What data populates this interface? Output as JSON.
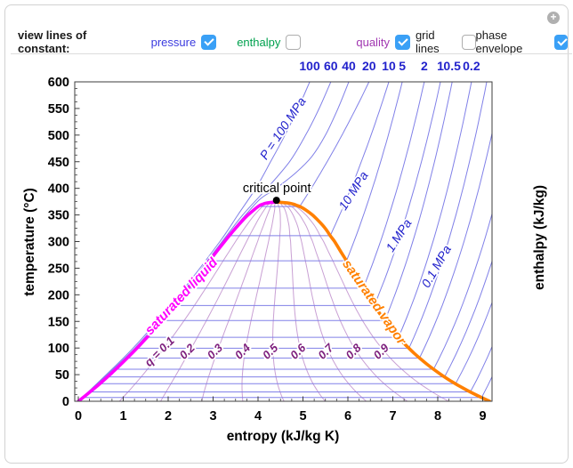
{
  "controls": {
    "heading": "view lines of constant:",
    "plus_icon": "+",
    "items": [
      {
        "label": "pressure",
        "color": "#3b3bdf",
        "checked": true
      },
      {
        "label": "enthalpy",
        "color": "#00a14e",
        "checked": false
      },
      {
        "label": "quality",
        "color": "#a137b1",
        "checked": true
      },
      {
        "label": "grid lines",
        "color": "#1a1a1a",
        "checked": false
      },
      {
        "label": "phase envelope",
        "color": "#1a1a1a",
        "checked": true
      }
    ]
  },
  "chart_data": {
    "type": "line",
    "xlabel": "entropy (kJ/kg K)",
    "ylabel": "temperature (°C)",
    "right_axis_label": "enthalpy (kJ/kg)",
    "xlim": [
      0,
      9.2
    ],
    "ylim": [
      0,
      600
    ],
    "x_ticks": [
      0,
      1,
      2,
      3,
      4,
      5,
      6,
      7,
      8,
      9
    ],
    "y_ticks": [
      0,
      50,
      100,
      150,
      200,
      250,
      300,
      350,
      400,
      450,
      500,
      550,
      600
    ],
    "top_axis": {
      "labels": [
        {
          "text": "100",
          "s": 5.15
        },
        {
          "text": "60",
          "s": 5.62
        },
        {
          "text": "40",
          "s": 6.02
        },
        {
          "text": "20",
          "s": 6.47
        },
        {
          "text": "10",
          "s": 6.91
        },
        {
          "text": "5",
          "s": 7.21
        },
        {
          "text": "2",
          "s": 7.7
        },
        {
          "text": "1",
          "s": 8.06
        },
        {
          "text": "0.5",
          "s": 8.32
        },
        {
          "text": "0.2",
          "s": 8.75
        }
      ]
    },
    "saturation_liquid": [
      [
        0,
        0
      ],
      [
        10,
        0.151
      ],
      [
        20,
        0.297
      ],
      [
        30,
        0.437
      ],
      [
        40,
        0.572
      ],
      [
        50,
        0.704
      ],
      [
        60,
        0.831
      ],
      [
        70,
        0.955
      ],
      [
        80,
        1.075
      ],
      [
        90,
        1.193
      ],
      [
        100,
        1.307
      ],
      [
        110,
        1.419
      ],
      [
        120,
        1.528
      ],
      [
        130,
        1.635
      ],
      [
        140,
        1.739
      ],
      [
        150,
        1.842
      ],
      [
        170,
        2.042
      ],
      [
        190,
        2.236
      ],
      [
        200,
        2.331
      ],
      [
        220,
        2.518
      ],
      [
        240,
        2.702
      ],
      [
        260,
        2.885
      ],
      [
        280,
        3.068
      ],
      [
        300,
        3.255
      ],
      [
        310,
        3.351
      ],
      [
        320,
        3.449
      ],
      [
        330,
        3.552
      ],
      [
        340,
        3.66
      ],
      [
        350,
        3.778
      ],
      [
        360,
        3.915
      ],
      [
        365,
        3.99
      ],
      [
        368,
        4.04
      ],
      [
        370,
        4.1
      ],
      [
        372,
        4.17
      ],
      [
        373,
        4.24
      ],
      [
        374.15,
        4.41
      ]
    ],
    "saturation_vapor": [
      [
        0,
        9.155
      ],
      [
        10,
        8.9
      ],
      [
        20,
        8.666
      ],
      [
        30,
        8.452
      ],
      [
        40,
        8.256
      ],
      [
        50,
        8.075
      ],
      [
        60,
        7.909
      ],
      [
        70,
        7.754
      ],
      [
        80,
        7.611
      ],
      [
        90,
        7.478
      ],
      [
        100,
        7.354
      ],
      [
        110,
        7.238
      ],
      [
        120,
        7.129
      ],
      [
        130,
        7.026
      ],
      [
        140,
        6.929
      ],
      [
        150,
        6.837
      ],
      [
        170,
        6.665
      ],
      [
        190,
        6.507
      ],
      [
        200,
        6.43
      ],
      [
        220,
        6.285
      ],
      [
        240,
        6.142
      ],
      [
        260,
        5.998
      ],
      [
        280,
        5.85
      ],
      [
        300,
        5.704
      ],
      [
        310,
        5.615
      ],
      [
        320,
        5.536
      ],
      [
        330,
        5.446
      ],
      [
        340,
        5.335
      ],
      [
        350,
        5.211
      ],
      [
        360,
        5.052
      ],
      [
        365,
        4.95
      ],
      [
        368,
        4.86
      ],
      [
        370,
        4.8
      ],
      [
        372,
        4.7
      ],
      [
        373,
        4.6
      ],
      [
        374.15,
        4.41
      ]
    ],
    "critical_point": {
      "s": 4.41,
      "T": 374.15,
      "label": "critical point",
      "label_s": 4.42,
      "label_T": 401
    },
    "isobars_supercritical": [
      {
        "label": "100",
        "points": [
          [
            0,
            0
          ],
          [
            100,
            1.22
          ],
          [
            200,
            2.24
          ],
          [
            300,
            3.15
          ],
          [
            350,
            3.55
          ],
          [
            400,
            3.95
          ],
          [
            450,
            4.28
          ],
          [
            500,
            4.6
          ],
          [
            550,
            4.89
          ],
          [
            600,
            5.15
          ]
        ]
      },
      {
        "label": "60",
        "points": [
          [
            0,
            0
          ],
          [
            100,
            1.26
          ],
          [
            200,
            2.28
          ],
          [
            300,
            3.2
          ],
          [
            350,
            3.66
          ],
          [
            400,
            4.2
          ],
          [
            450,
            4.7
          ],
          [
            500,
            5.06
          ],
          [
            550,
            5.36
          ],
          [
            600,
            5.62
          ]
        ]
      },
      {
        "label": "40",
        "points": [
          [
            0,
            0
          ],
          [
            100,
            1.28
          ],
          [
            200,
            2.3
          ],
          [
            300,
            3.22
          ],
          [
            350,
            3.72
          ],
          [
            380,
            4.05
          ],
          [
            400,
            4.4
          ],
          [
            430,
            4.85
          ],
          [
            460,
            5.2
          ],
          [
            500,
            5.5
          ],
          [
            550,
            5.78
          ],
          [
            600,
            6.02
          ]
        ]
      }
    ],
    "isobars_subcritical": [
      {
        "label": "20",
        "Tsat": 365.8,
        "s_top": 6.47
      },
      {
        "label": "10",
        "Tsat": 311.0,
        "s_top": 6.91
      },
      {
        "label": "5",
        "Tsat": 263.9,
        "s_top": 7.21
      },
      {
        "label": "2",
        "Tsat": 212.4,
        "s_top": 7.7
      },
      {
        "label": "1",
        "Tsat": 179.9,
        "s_top": 8.06
      },
      {
        "label": "0.5",
        "Tsat": 151.8,
        "s_top": 8.32
      },
      {
        "label": "0.2",
        "Tsat": 120.2,
        "s_top": 8.75
      },
      {
        "label": "0.1",
        "Tsat": 99.6,
        "s_top": 9.09
      },
      {
        "label": "",
        "Tsat": 81.3,
        "s_top": 9.45
      },
      {
        "label": "",
        "Tsat": 60.1,
        "s_top": 9.9
      },
      {
        "label": "",
        "Tsat": 45.8,
        "s_top": 10.2
      },
      {
        "label": "",
        "Tsat": 32.9,
        "s_top": 10.5
      },
      {
        "label": "",
        "Tsat": 17.5,
        "s_top": 10.8
      },
      {
        "label": "",
        "Tsat": 7.0,
        "s_top": 11.0
      }
    ],
    "curve_labels": [
      {
        "text": "P = 100 MPa",
        "s": 4.63,
        "T": 515,
        "rot": -56
      },
      {
        "text": "10 MPa",
        "s": 6.2,
        "T": 398,
        "rot": -57
      },
      {
        "text": "1 MPa",
        "s": 7.21,
        "T": 314,
        "rot": -57
      },
      {
        "text": "0.1 MPa",
        "s": 8.05,
        "T": 256,
        "rot": -60
      }
    ],
    "quality_lines": {
      "values": [
        0.1,
        0.2,
        0.3,
        0.4,
        0.5,
        0.6,
        0.7,
        0.8,
        0.9
      ],
      "label_texts": [
        "q = 0.1",
        "0.2",
        "0.3",
        "0.4",
        "0.5",
        "0.6",
        "0.7",
        "0.8",
        "0.9"
      ],
      "label_T": 95,
      "label_rot": -45
    },
    "envelope_labels": [
      {
        "text": "saturated liquid",
        "s": 2.36,
        "T": 200,
        "rot": -47,
        "color": "#ff00ff"
      },
      {
        "text": "saturated vapor",
        "s": 6.51,
        "T": 190,
        "rot": 55,
        "color": "#ff8000"
      }
    ],
    "colors": {
      "isobar": "#8080e8",
      "isobar_label": "#2222cc",
      "top_axis_label": "#2222cc",
      "quality_line": "#c9a0d4",
      "quality_label": "#7d1f7d",
      "sat_liquid": "#ff00ff",
      "sat_vapor": "#ff8000",
      "frame": "#3c3c3c",
      "tick_label": "#000000"
    }
  }
}
